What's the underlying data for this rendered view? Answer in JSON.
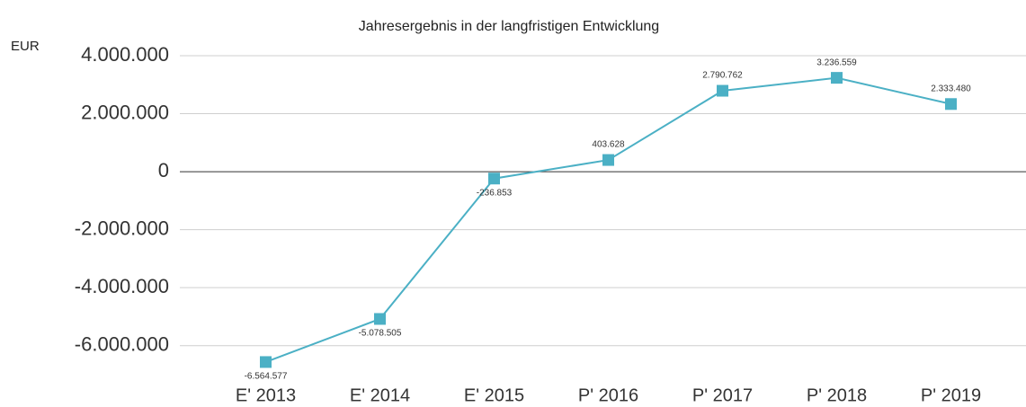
{
  "chart_data": {
    "type": "line",
    "title": "Jahresergebnis in der langfristigen Entwicklung",
    "y_label": "EUR",
    "categories": [
      "E' 2013",
      "E' 2014",
      "E' 2015",
      "P' 2016",
      "P' 2017",
      "P' 2018",
      "P' 2019"
    ],
    "series": [
      {
        "name": "Jahresergebnis",
        "color": "#4bb0c5",
        "values": [
          -6564577,
          -5078505,
          -236853,
          403628,
          2790762,
          3236559,
          2333480
        ],
        "value_labels": [
          "-6.564.577",
          "-5.078.505",
          "-236.853",
          "403.628",
          "2.790.762",
          "3.236.559",
          "2.333.480"
        ]
      }
    ],
    "ylim": [
      -7000000,
      4000000
    ],
    "yticks": [
      {
        "value": -6000000,
        "label": "-6.000.000"
      },
      {
        "value": -4000000,
        "label": "-4.000.000"
      },
      {
        "value": -2000000,
        "label": "-2.000.000"
      },
      0,
      {
        "value": 2000000,
        "label": "2.000.000"
      },
      {
        "value": 4000000,
        "label": "4.000.000"
      }
    ],
    "grid": true
  }
}
